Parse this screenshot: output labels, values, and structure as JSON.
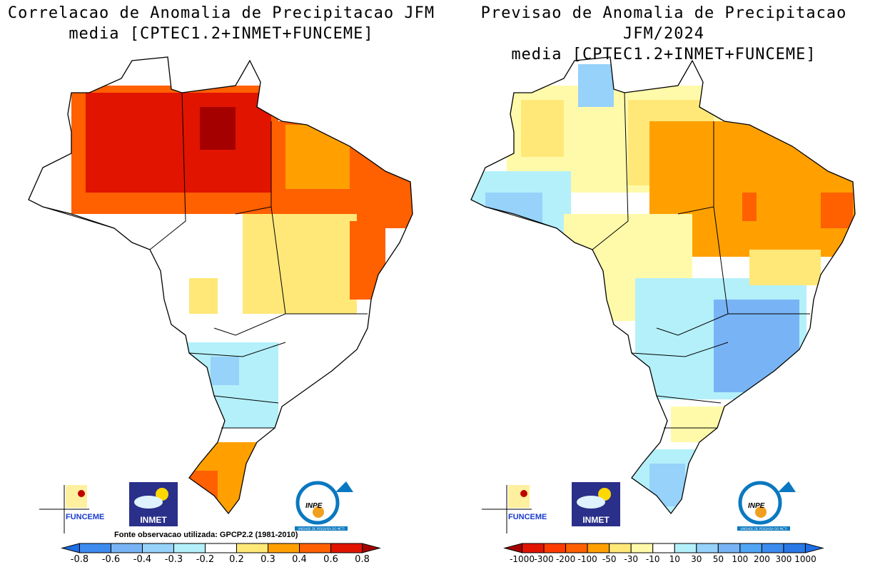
{
  "left_map": {
    "title_line1": "Correlacao de Anomalia de Precipitacao JFM",
    "title_line2": "media [CPTEC1.2+INMET+FUNCEME]",
    "source_note": "Fonte observacao utilizada: GPCP2.2 (1981-2010)",
    "colorbar": {
      "labels": [
        "-0.8",
        "-0.6",
        "-0.4",
        "-0.3",
        "-0.2",
        "0.2",
        "0.3",
        "0.4",
        "0.6",
        "0.8"
      ],
      "low_arrow_color": "#1e6ee6",
      "high_arrow_color": "#a50000",
      "colors": [
        "#3c8cf0",
        "#78b4f5",
        "#96d2fa",
        "#b4f0fa",
        "#ffffff",
        "#ffe878",
        "#ffa000",
        "#ff6000",
        "#e11400"
      ]
    }
  },
  "right_map": {
    "title_line1": "Previsao de Anomalia de Precipitacao JFM/2024",
    "title_line2": "media [CPTEC1.2+INMET+FUNCEME]",
    "colorbar": {
      "labels": [
        "-1000",
        "-300",
        "-200",
        "-100",
        "-50",
        "-30",
        "-10",
        "10",
        "30",
        "50",
        "100",
        "200",
        "300",
        "1000"
      ],
      "low_arrow_color": "#a50000",
      "high_arrow_color": "#1e6ee6",
      "colors": [
        "#e11400",
        "#ff3c00",
        "#ff6000",
        "#ffa000",
        "#ffe878",
        "#fffaaa",
        "#ffffff",
        "#b4f0fa",
        "#96d2fa",
        "#78b4f5",
        "#50a5f5",
        "#3c8cf0",
        "#2878e6"
      ]
    }
  },
  "logos": {
    "funceme": "FUNCEME",
    "inmet": "INMET",
    "inpe": "INPE",
    "inpe_sub": "UNIDADE DE PESQUISA DO MCTI"
  }
}
